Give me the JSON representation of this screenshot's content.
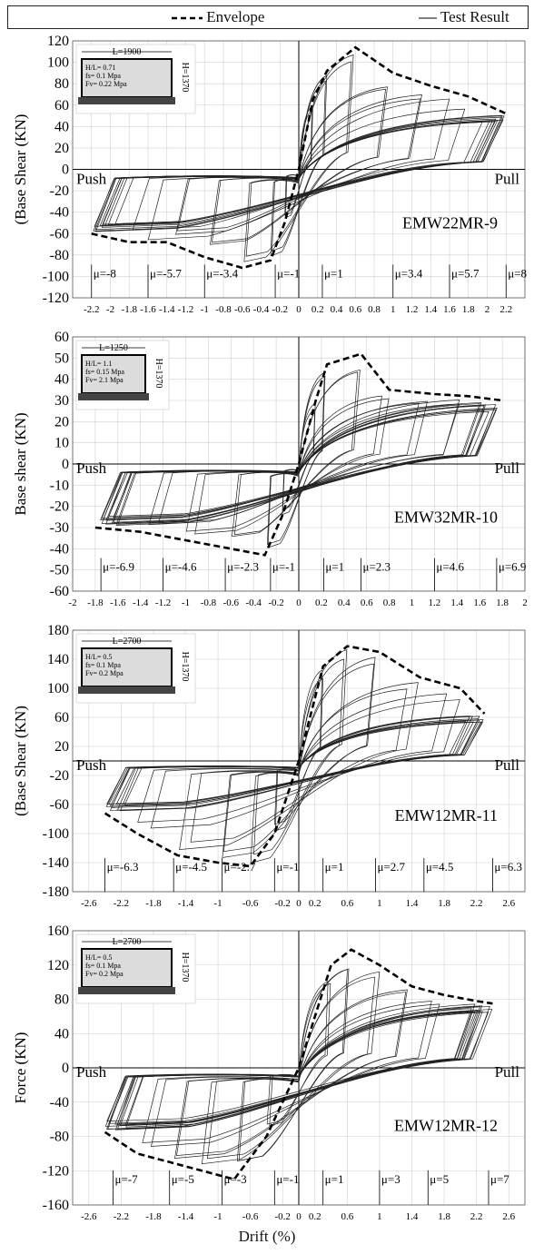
{
  "legend": {
    "envelope": "Envelope",
    "test": "Test Result"
  },
  "x_axis_label": "Drift  (%)",
  "chart_data": [
    {
      "type": "line",
      "specimen": "EMW22MR-9",
      "ylabel": "(Base Shear (KN)",
      "ylim": [
        -120,
        120
      ],
      "yticks": [
        120,
        100,
        80,
        60,
        40,
        20,
        0,
        -20,
        -40,
        -60,
        -80,
        -100,
        -120
      ],
      "xlim": [
        -2.4,
        2.4
      ],
      "xtick_labels": [
        "-2.2",
        "-2",
        "-1.8",
        "-1.6",
        "-1.4",
        "-1.2",
        "-1",
        "-0.8",
        "-0.6",
        "-0.4",
        "-0.2",
        "0",
        "0.2",
        "0.4",
        "0.6",
        "0.8",
        "1",
        "1.2",
        "1.4",
        "1.6",
        "1.8",
        "2",
        "2.2"
      ],
      "grid": true,
      "push_label": "Push",
      "pull_label": "Pull",
      "ductility_labels": [
        "μ=-8",
        "μ=-5.7",
        "μ=-3.4",
        "μ=-1",
        "μ=1",
        "μ=3.4",
        "μ=5.7",
        "μ=8"
      ],
      "ductility_x": [
        -2.2,
        -1.6,
        -1.0,
        -0.25,
        0.25,
        1.0,
        1.6,
        2.2
      ],
      "wall": {
        "length": "L=1900",
        "height": "H=1370",
        "ratio": "H/L= 0.71",
        "fs": "fs= 0.1 Mpa",
        "fv": "Fv= 0.22 Mpa"
      },
      "series": [
        {
          "name": "Envelope",
          "x": [
            -2.2,
            -1.8,
            -1.4,
            -1.0,
            -0.6,
            -0.3,
            -0.15,
            0,
            0.15,
            0.3,
            0.6,
            1.0,
            1.4,
            1.8,
            2.2
          ],
          "y": [
            -60,
            -68,
            -68,
            -82,
            -92,
            -85,
            -50,
            0,
            65,
            92,
            114,
            90,
            78,
            68,
            52
          ]
        }
      ]
    },
    {
      "type": "line",
      "specimen": "EMW32MR-10",
      "ylabel": "Base shear (KN)",
      "ylim": [
        -60,
        60
      ],
      "yticks": [
        60,
        50,
        40,
        30,
        20,
        10,
        0,
        -10,
        -20,
        -30,
        -40,
        -50,
        -60
      ],
      "xlim": [
        -2.0,
        2.0
      ],
      "xtick_labels": [
        "-2",
        "-1.8",
        "-1.6",
        "-1.4",
        "-1.2",
        "-1",
        "-0.8",
        "-0.6",
        "-0.4",
        "-0.2",
        "0",
        "0.2",
        "0.4",
        "0.6",
        "0.8",
        "1",
        "1.2",
        "1.4",
        "1.6",
        "1.8",
        "2"
      ],
      "grid": true,
      "push_label": "Push",
      "pull_label": "Pull",
      "ductility_labels": [
        "μ=-6.9",
        "μ=-4.6",
        "μ=-2.3",
        "μ=-1",
        "μ=1",
        "μ=2.3",
        "μ=4.6",
        "μ=6.9"
      ],
      "ductility_x": [
        -1.75,
        -1.2,
        -0.65,
        -0.25,
        0.22,
        0.55,
        1.2,
        1.75
      ],
      "wall": {
        "length": "L=1250",
        "height": "H=1370",
        "ratio": "H/L= 1.1",
        "fs": "fs= 0.15 Mpa",
        "fv": "Fv= 2.1 Mpa"
      },
      "series": [
        {
          "name": "Envelope",
          "x": [
            -1.8,
            -1.4,
            -1.0,
            -0.6,
            -0.3,
            -0.15,
            0,
            0.15,
            0.25,
            0.55,
            0.8,
            1.2,
            1.5,
            1.8
          ],
          "y": [
            -30,
            -32,
            -36,
            -40,
            -43,
            -25,
            0,
            30,
            47,
            52,
            35,
            33,
            32,
            30
          ]
        }
      ]
    },
    {
      "type": "line",
      "specimen": "EMW12MR-11",
      "ylabel": "(Base Shear (KN)",
      "ylim": [
        -180,
        180
      ],
      "yticks": [
        180,
        140,
        100,
        60,
        20,
        -20,
        -60,
        -100,
        -140,
        -180
      ],
      "xlim": [
        -2.8,
        2.8
      ],
      "xtick_labels": [
        "-2.6",
        "-2.2",
        "-1.8",
        "-1.4",
        "-1",
        "-0.6",
        "-0.2",
        "0",
        "0.2",
        "0.6",
        "1",
        "1.4",
        "1.8",
        "2.2",
        "2.6"
      ],
      "grid": true,
      "push_label": "Push",
      "pull_label": "Pull",
      "ductility_labels": [
        "μ=-6.3",
        "μ=-4.5",
        "μ=-2.7",
        "μ=-1",
        "μ=1",
        "μ=2.7",
        "μ=4.5",
        "μ=6.3"
      ],
      "ductility_x": [
        -2.4,
        -1.55,
        -0.95,
        -0.3,
        0.3,
        0.95,
        1.55,
        2.4
      ],
      "wall": {
        "length": "L=2700",
        "height": "H=1370",
        "ratio": "H/L= 0.5",
        "fs": "fs= 0.1 Mpa",
        "fv": "Fv= 0.2 Mpa"
      },
      "series": [
        {
          "name": "Envelope",
          "x": [
            -2.4,
            -2.0,
            -1.5,
            -1.0,
            -0.6,
            -0.3,
            0,
            0.3,
            0.6,
            1.0,
            1.5,
            2.0,
            2.3
          ],
          "y": [
            -72,
            -100,
            -130,
            -140,
            -145,
            -100,
            0,
            130,
            158,
            150,
            115,
            100,
            65
          ]
        }
      ]
    },
    {
      "type": "line",
      "specimen": "EMW12MR-12",
      "ylabel": "Force (KN)",
      "ylim": [
        -160,
        160
      ],
      "yticks": [
        160,
        120,
        80,
        40,
        0,
        -40,
        -80,
        -120,
        -160
      ],
      "xlim": [
        -2.8,
        2.8
      ],
      "xtick_labels": [
        "-2.6",
        "-2.2",
        "-1.8",
        "-1.4",
        "-1",
        "-0.6",
        "-0.2",
        "0",
        "0.2",
        "0.6",
        "1",
        "1.4",
        "1.8",
        "2.2",
        "2.6"
      ],
      "grid": true,
      "push_label": "Push",
      "pull_label": "Pull",
      "ductility_labels": [
        "μ=-7",
        "μ=-5",
        "μ=-3",
        "μ=-1",
        "μ=1",
        "μ=3",
        "μ=5",
        "μ=7"
      ],
      "ductility_x": [
        -2.3,
        -1.6,
        -0.95,
        -0.3,
        0.3,
        1.0,
        1.6,
        2.35
      ],
      "wall": {
        "length": "L=2700",
        "height": "H=1370",
        "ratio": "H/L= 0.5",
        "fs": "fs= 0.1 Mpa",
        "fv": "Fv= 0.2 Mpa"
      },
      "series": [
        {
          "name": "Envelope",
          "x": [
            -2.4,
            -2.0,
            -1.6,
            -1.2,
            -0.8,
            -0.4,
            0,
            0.4,
            0.65,
            1.0,
            1.4,
            1.8,
            2.2,
            2.4
          ],
          "y": [
            -75,
            -100,
            -110,
            -120,
            -130,
            -80,
            0,
            120,
            138,
            120,
            95,
            85,
            78,
            75
          ]
        }
      ]
    }
  ]
}
